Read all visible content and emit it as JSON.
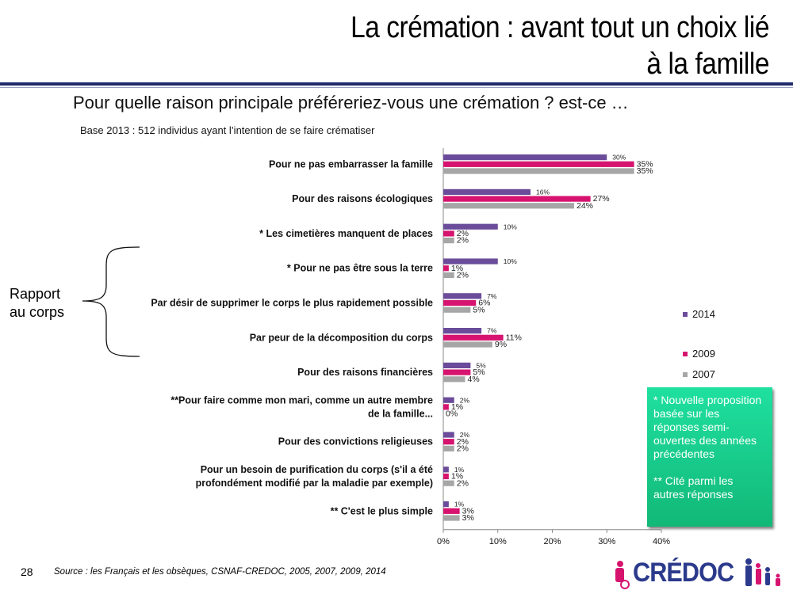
{
  "slide": {
    "title_line1": "La crémation : avant tout un choix lié",
    "title_line2": "à la famille",
    "question": "Pour quelle raison principale préféreriez-vous une crémation ? est-ce …",
    "base": "Base 2013 : 512 individus ayant l’intention de se faire crématiser",
    "bracket_label_line1": "Rapport",
    "bracket_label_line2": "au corps",
    "note_line1": "* Nouvelle proposition basée sur les réponses semi-ouvertes des années précédentes",
    "note_line2": "** Cité parmi les autres réponses",
    "page_number": "28",
    "source": "Source : les Français et les obsèques, CSNAF-CREDOC, 2005, 2007, 2009, 2014",
    "logo_text": "CRÉDOC"
  },
  "chart_data": {
    "type": "bar",
    "orientation": "horizontal",
    "categories": [
      [
        "Pour ne pas embarrasser la famille"
      ],
      [
        "Pour des raisons écologiques"
      ],
      [
        "* Les cimetières manquent de places"
      ],
      [
        "* Pour ne pas être sous la terre"
      ],
      [
        "Par désir de supprimer le corps le plus rapidement possible"
      ],
      [
        "Par peur de la décomposition du corps"
      ],
      [
        "Pour des raisons financières"
      ],
      [
        "**Pour faire comme mon mari, comme un autre membre",
        "de la famille..."
      ],
      [
        "Pour des convictions religieuses"
      ],
      [
        "Pour un besoin de purification du corps (s'il a été",
        "profondément modifié par la maladie par exemple)"
      ],
      [
        "** C'est le plus simple"
      ]
    ],
    "series": [
      {
        "name": "2014",
        "color": "#6b4c9a",
        "values": [
          30,
          16,
          10,
          10,
          7,
          7,
          5,
          2,
          2,
          1,
          1
        ]
      },
      {
        "name": "2009",
        "color": "#d6136f",
        "values": [
          35,
          27,
          2,
          1,
          6,
          11,
          5,
          1,
          2,
          1,
          3
        ]
      },
      {
        "name": "2007",
        "color": "#a6a6a6",
        "values": [
          35,
          24,
          2,
          2,
          5,
          9,
          4,
          0,
          2,
          2,
          3
        ]
      }
    ],
    "xlim": [
      0,
      40
    ],
    "xticks": [
      "0%",
      "10%",
      "20%",
      "30%",
      "40%"
    ],
    "value_suffix": "%",
    "legend_position": "right",
    "grid": false
  }
}
